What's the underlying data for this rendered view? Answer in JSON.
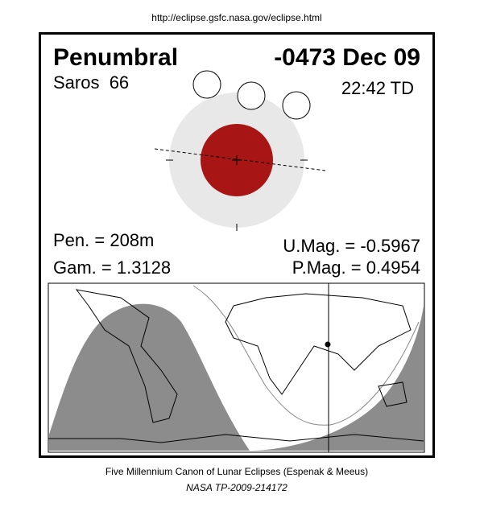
{
  "header": {
    "url": "http://eclipse.gsfc.nasa.gov/eclipse.html"
  },
  "eclipse": {
    "type": "Penumbral",
    "date": "-0473 Dec 09",
    "saros": "Saros  66",
    "time": "22:42 TD",
    "pen": "Pen. = 208m",
    "gam": "Gam. = 1.3128",
    "umag": "U.Mag. = -0.5967",
    "pmag": "P.Mag. = 0.4954"
  },
  "footer": {
    "line1": "Five Millennium Canon of Lunar Eclipses (Espenak & Meeus)",
    "line2": "NASA TP-2009-214172"
  }
}
